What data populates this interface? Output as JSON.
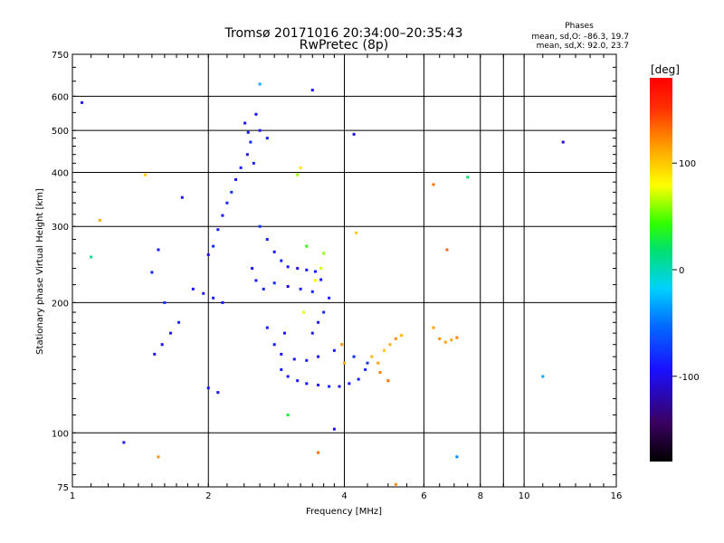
{
  "chart_data": {
    "type": "scatter",
    "title": "Tromsø 20171016 20:34:00–20:35:43",
    "subtitle": "RwPretec (8p)",
    "stats": {
      "heading": "Phases",
      "line1": "mean, sd,O: –86.3, 19.7",
      "line2": "mean, sd,X:  92.0, 23.7"
    },
    "xlabel": "Frequency [MHz]",
    "ylabel": "Stationary phase Virtual Height [km]",
    "x_scale": "log2",
    "y_scale": "log",
    "xlim": [
      1,
      16
    ],
    "ylim": [
      75,
      750
    ],
    "x_ticks": [
      1,
      2,
      4,
      6,
      8,
      10,
      16
    ],
    "x_tick_labels": [
      "1",
      "2",
      "4",
      "6",
      "8",
      "10",
      "16"
    ],
    "y_ticks": [
      75,
      100,
      200,
      300,
      400,
      500,
      600,
      750
    ],
    "y_tick_labels": [
      "75",
      "100",
      "200",
      "300",
      "400",
      "500",
      "600",
      "750"
    ],
    "grid": true,
    "colorbar": {
      "label": "[deg]",
      "range": [
        -180,
        180
      ],
      "ticks": [
        100,
        0,
        -100
      ],
      "tick_labels": [
        "100",
        "0",
        "-100"
      ]
    },
    "series": [
      {
        "points": [
          {
            "x": 2.41,
            "y": 520,
            "phase": -95
          },
          {
            "x": 2.45,
            "y": 495,
            "phase": -90
          },
          {
            "x": 2.48,
            "y": 470,
            "phase": -85
          },
          {
            "x": 2.44,
            "y": 440,
            "phase": -100
          },
          {
            "x": 2.36,
            "y": 410,
            "phase": -88
          },
          {
            "x": 2.3,
            "y": 385,
            "phase": -92
          },
          {
            "x": 2.25,
            "y": 360,
            "phase": -80
          },
          {
            "x": 2.2,
            "y": 340,
            "phase": -85
          },
          {
            "x": 2.15,
            "y": 318,
            "phase": -95
          },
          {
            "x": 2.1,
            "y": 295,
            "phase": -90
          },
          {
            "x": 2.05,
            "y": 270,
            "phase": -82
          },
          {
            "x": 2.0,
            "y": 258,
            "phase": -100
          },
          {
            "x": 2.55,
            "y": 545,
            "phase": -98
          },
          {
            "x": 2.6,
            "y": 500,
            "phase": -92
          },
          {
            "x": 2.7,
            "y": 480,
            "phase": -88
          },
          {
            "x": 2.52,
            "y": 420,
            "phase": -85
          },
          {
            "x": 2.6,
            "y": 300,
            "phase": -78
          },
          {
            "x": 2.7,
            "y": 280,
            "phase": -90
          },
          {
            "x": 2.8,
            "y": 262,
            "phase": -95
          },
          {
            "x": 2.9,
            "y": 250,
            "phase": -86
          },
          {
            "x": 3.0,
            "y": 242,
            "phase": -90
          },
          {
            "x": 3.15,
            "y": 240,
            "phase": -100
          },
          {
            "x": 3.3,
            "y": 238,
            "phase": -88
          },
          {
            "x": 3.45,
            "y": 236,
            "phase": -92
          },
          {
            "x": 2.5,
            "y": 240,
            "phase": -95
          },
          {
            "x": 2.55,
            "y": 225,
            "phase": -90
          },
          {
            "x": 2.65,
            "y": 215,
            "phase": -86
          },
          {
            "x": 2.8,
            "y": 222,
            "phase": -82
          },
          {
            "x": 3.0,
            "y": 218,
            "phase": -100
          },
          {
            "x": 3.2,
            "y": 215,
            "phase": -90
          },
          {
            "x": 3.4,
            "y": 212,
            "phase": -88
          },
          {
            "x": 3.55,
            "y": 226,
            "phase": -94
          },
          {
            "x": 3.7,
            "y": 205,
            "phase": -90
          },
          {
            "x": 3.6,
            "y": 190,
            "phase": -84
          },
          {
            "x": 3.5,
            "y": 180,
            "phase": -96
          },
          {
            "x": 3.4,
            "y": 170,
            "phase": -92
          },
          {
            "x": 1.85,
            "y": 215,
            "phase": -90
          },
          {
            "x": 1.95,
            "y": 210,
            "phase": -95
          },
          {
            "x": 2.05,
            "y": 205,
            "phase": -88
          },
          {
            "x": 2.15,
            "y": 200,
            "phase": -92
          },
          {
            "x": 1.72,
            "y": 180,
            "phase": -85
          },
          {
            "x": 1.65,
            "y": 170,
            "phase": -90
          },
          {
            "x": 1.58,
            "y": 160,
            "phase": -95
          },
          {
            "x": 1.52,
            "y": 152,
            "phase": -100
          },
          {
            "x": 1.6,
            "y": 200,
            "phase": -80
          },
          {
            "x": 1.55,
            "y": 265,
            "phase": -90
          },
          {
            "x": 1.5,
            "y": 235,
            "phase": -86
          },
          {
            "x": 1.75,
            "y": 350,
            "phase": -95
          },
          {
            "x": 2.0,
            "y": 127,
            "phase": -90
          },
          {
            "x": 2.1,
            "y": 124,
            "phase": -95
          },
          {
            "x": 2.9,
            "y": 140,
            "phase": -88
          },
          {
            "x": 3.0,
            "y": 135,
            "phase": -92
          },
          {
            "x": 3.15,
            "y": 132,
            "phase": -90
          },
          {
            "x": 3.3,
            "y": 130,
            "phase": -95
          },
          {
            "x": 3.5,
            "y": 129,
            "phase": -100
          },
          {
            "x": 3.7,
            "y": 128,
            "phase": -86
          },
          {
            "x": 3.9,
            "y": 128,
            "phase": -90
          },
          {
            "x": 4.1,
            "y": 130,
            "phase": -92
          },
          {
            "x": 4.3,
            "y": 133,
            "phase": -88
          },
          {
            "x": 4.45,
            "y": 140,
            "phase": -85
          },
          {
            "x": 2.8,
            "y": 160,
            "phase": -90
          },
          {
            "x": 2.9,
            "y": 152,
            "phase": -96
          },
          {
            "x": 3.1,
            "y": 148,
            "phase": -92
          },
          {
            "x": 3.3,
            "y": 147,
            "phase": -88
          },
          {
            "x": 3.5,
            "y": 150,
            "phase": -94
          },
          {
            "x": 3.8,
            "y": 155,
            "phase": -90
          },
          {
            "x": 4.2,
            "y": 150,
            "phase": -84
          },
          {
            "x": 4.5,
            "y": 145,
            "phase": -80
          },
          {
            "x": 2.7,
            "y": 175,
            "phase": -90
          },
          {
            "x": 2.95,
            "y": 170,
            "phase": -92
          },
          {
            "x": 3.6,
            "y": 260,
            "phase": 60
          },
          {
            "x": 3.55,
            "y": 240,
            "phase": 70
          },
          {
            "x": 3.45,
            "y": 225,
            "phase": 80
          },
          {
            "x": 3.3,
            "y": 270,
            "phase": 40
          },
          {
            "x": 3.2,
            "y": 410,
            "phase": 90
          },
          {
            "x": 3.15,
            "y": 395,
            "phase": 60
          },
          {
            "x": 3.25,
            "y": 190,
            "phase": 75
          },
          {
            "x": 4.0,
            "y": 145,
            "phase": 110
          },
          {
            "x": 3.95,
            "y": 160,
            "phase": 120
          },
          {
            "x": 4.6,
            "y": 150,
            "phase": 105
          },
          {
            "x": 4.75,
            "y": 145,
            "phase": 115
          },
          {
            "x": 4.9,
            "y": 155,
            "phase": 100
          },
          {
            "x": 5.05,
            "y": 160,
            "phase": 110
          },
          {
            "x": 5.2,
            "y": 165,
            "phase": 120
          },
          {
            "x": 5.35,
            "y": 168,
            "phase": 105
          },
          {
            "x": 6.5,
            "y": 165,
            "phase": 120
          },
          {
            "x": 6.7,
            "y": 162,
            "phase": 115
          },
          {
            "x": 6.9,
            "y": 164,
            "phase": 110
          },
          {
            "x": 7.1,
            "y": 166,
            "phase": 125
          },
          {
            "x": 6.3,
            "y": 175,
            "phase": 115
          },
          {
            "x": 5.0,
            "y": 132,
            "phase": 130
          },
          {
            "x": 4.8,
            "y": 138,
            "phase": 125
          },
          {
            "x": 6.3,
            "y": 375,
            "phase": 130
          },
          {
            "x": 6.75,
            "y": 265,
            "phase": 135
          },
          {
            "x": 7.5,
            "y": 390,
            "phase": 20
          },
          {
            "x": 12.2,
            "y": 470,
            "phase": -110
          },
          {
            "x": 11.0,
            "y": 135,
            "phase": -30
          },
          {
            "x": 7.1,
            "y": 88,
            "phase": -40
          },
          {
            "x": 1.05,
            "y": 580,
            "phase": -100
          },
          {
            "x": 1.1,
            "y": 255,
            "phase": 10
          },
          {
            "x": 1.15,
            "y": 310,
            "phase": 110
          },
          {
            "x": 1.45,
            "y": 395,
            "phase": 100
          },
          {
            "x": 1.3,
            "y": 95,
            "phase": -90
          },
          {
            "x": 1.55,
            "y": 88,
            "phase": 120
          },
          {
            "x": 4.2,
            "y": 490,
            "phase": -100
          },
          {
            "x": 3.4,
            "y": 620,
            "phase": -95
          },
          {
            "x": 2.6,
            "y": 640,
            "phase": -30
          },
          {
            "x": 4.25,
            "y": 290,
            "phase": 100
          },
          {
            "x": 3.0,
            "y": 110,
            "phase": 30
          },
          {
            "x": 3.8,
            "y": 102,
            "phase": -100
          },
          {
            "x": 5.2,
            "y": 76,
            "phase": 120
          },
          {
            "x": 3.5,
            "y": 90,
            "phase": 130
          }
        ]
      }
    ]
  }
}
